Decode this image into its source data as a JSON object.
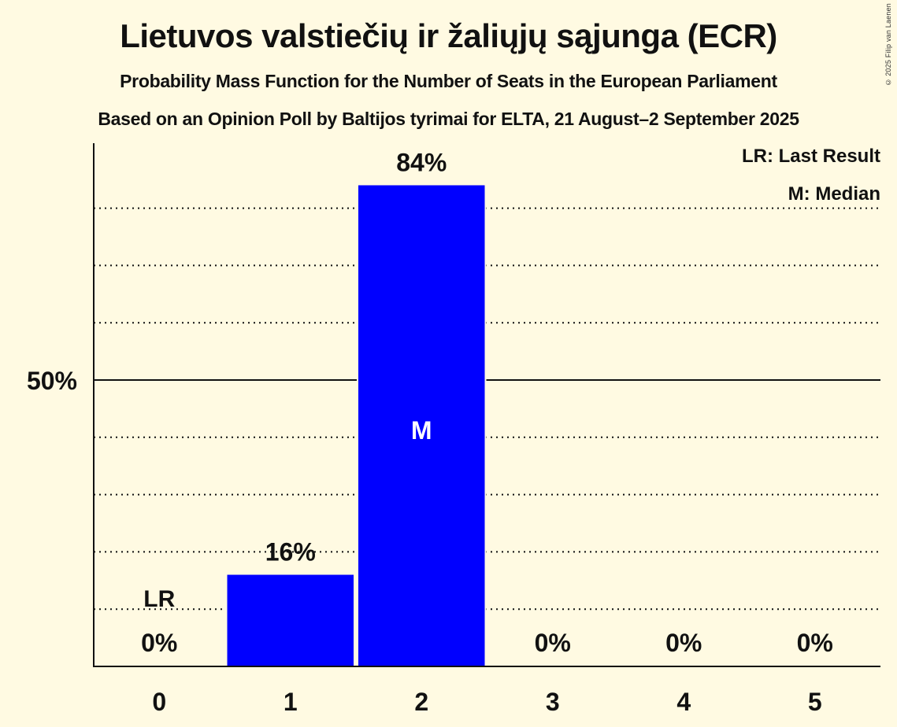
{
  "header": {
    "title": "Lietuvos valstiečių ir žaliųjų sąjunga (ECR)",
    "subtitle": "Probability Mass Function for the Number of Seats in the European Parliament",
    "source": "Based on an Opinion Poll by Baltijos tyrimai for ELTA, 21 August–2 September 2025",
    "copyright": "© 2025 Filip van Laenen"
  },
  "legend": {
    "last_result": "LR: Last Result",
    "median": "M: Median"
  },
  "axis": {
    "y_tick_50": "50%"
  },
  "markers": {
    "last_result_label": "LR",
    "median_label": "M"
  },
  "colors": {
    "background": "#fffae2",
    "bar": "#0000ff",
    "text": "#111111",
    "median_text": "#ffffff"
  },
  "chart_data": {
    "type": "bar",
    "title": "Lietuvos valstiečių ir žaliųjų sąjunga (ECR)",
    "subtitle": "Probability Mass Function for the Number of Seats in the European Parliament",
    "xlabel": "",
    "ylabel": "",
    "categories": [
      "0",
      "1",
      "2",
      "3",
      "4",
      "5"
    ],
    "values": [
      0,
      16,
      84,
      0,
      0,
      0
    ],
    "value_labels": [
      "0%",
      "16%",
      "84%",
      "0%",
      "0%",
      "0%"
    ],
    "ylim": [
      0,
      90
    ],
    "y_ticks_labeled": [
      {
        "value": 50,
        "label": "50%"
      }
    ],
    "gridlines": [
      10,
      20,
      30,
      40,
      60,
      70,
      80
    ],
    "gridline_style": "dotted",
    "solid_line_at": 50,
    "annotations": [
      {
        "category": "0",
        "label": "LR",
        "meaning": "Last Result"
      },
      {
        "category": "2",
        "label": "M",
        "meaning": "Median"
      }
    ],
    "legend": [
      "LR: Last Result",
      "M: Median"
    ],
    "legend_position": "top-right"
  }
}
